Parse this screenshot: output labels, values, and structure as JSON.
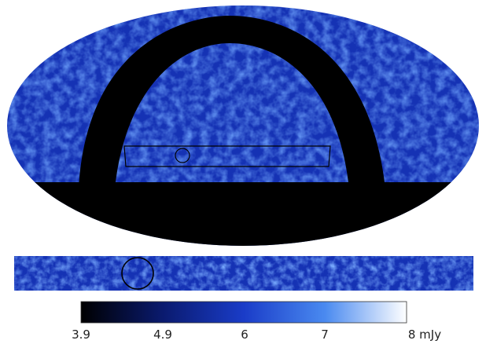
{
  "colorbar": {
    "ticks": [
      {
        "value": "3.9",
        "label": "3.9"
      },
      {
        "value": "4.9",
        "label": "4.9"
      },
      {
        "value": "6",
        "label": "6"
      },
      {
        "value": "7",
        "label": "7"
      },
      {
        "value": "8",
        "label": "8 mJy"
      }
    ],
    "min": 3.9,
    "max": 8,
    "colors": [
      "#000000",
      "#0a1a6e",
      "#1a3cc8",
      "#4a8af0",
      "#ffffff"
    ]
  },
  "map": {
    "background_color": "#1530b8",
    "mask_color": "#000000"
  }
}
